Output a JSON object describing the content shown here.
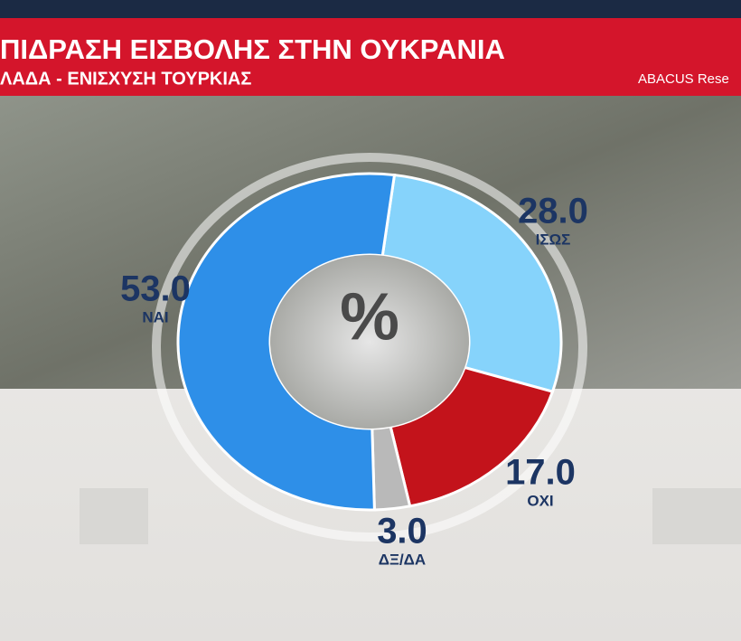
{
  "chart_data": {
    "type": "donut",
    "title": "ΠΙΔΡΑΣΗ ΕΙΣΒΟΛΗΣ ΣΤΗΝ ΟΥΚΡΑΝΙΑ",
    "subtitle": "ΛΑΔΑ - ΕΝΙΣΧΥΣΗ ΤΟΥΡΚΙΑΣ",
    "source": "ABACUS Rese",
    "center_label": "%",
    "categories": [
      "ΙΣΩΣ",
      "ΟΧΙ",
      "ΔΞ/ΔΑ",
      "ΝΑΙ"
    ],
    "values": [
      28,
      17,
      3,
      53
    ],
    "value_labels": [
      "28.0",
      "17.0",
      "3.0",
      "53.0"
    ],
    "colors": [
      "#86d3fb",
      "#c3131b",
      "#b9b9b9",
      "#2e8fe8"
    ]
  }
}
